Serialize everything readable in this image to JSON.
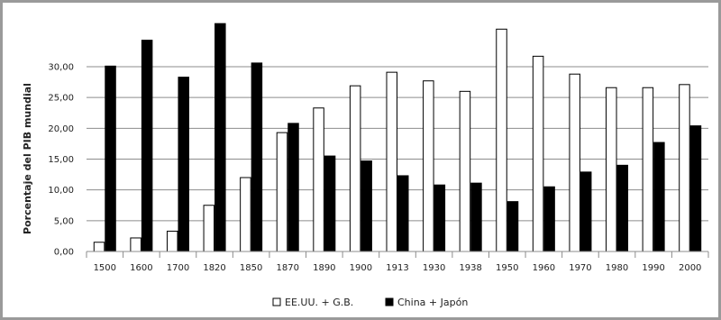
{
  "chart_data": {
    "type": "bar",
    "title": "",
    "xlabel": "",
    "ylabel": "Porcentaje del PIB mundial",
    "ylim": [
      0,
      35
    ],
    "yticks": [
      "0,00",
      "5,00",
      "10,00",
      "15,00",
      "20,00",
      "25,00",
      "30,00"
    ],
    "grid": true,
    "legend_position": "bottom",
    "categories": [
      "1500",
      "1600",
      "1700",
      "1820",
      "1850",
      "1870",
      "1890",
      "1900",
      "1913",
      "1930",
      "1938",
      "1950",
      "1960",
      "1970",
      "1980",
      "1990",
      "2000"
    ],
    "series": [
      {
        "name": "EE.UU. + G.B.",
        "color": "#ffffff",
        "values": [
          1.5,
          2.2,
          3.3,
          7.5,
          12.0,
          19.3,
          23.3,
          26.9,
          29.1,
          27.7,
          26.0,
          36.1,
          31.7,
          28.8,
          26.6,
          26.6,
          27.1
        ]
      },
      {
        "name": "China + Japón",
        "color": "#000000",
        "values": [
          30.1,
          34.3,
          28.3,
          37.0,
          30.6,
          20.8,
          15.5,
          14.7,
          12.3,
          10.8,
          11.1,
          8.1,
          10.5,
          12.9,
          14.0,
          17.7,
          20.4
        ]
      }
    ]
  }
}
